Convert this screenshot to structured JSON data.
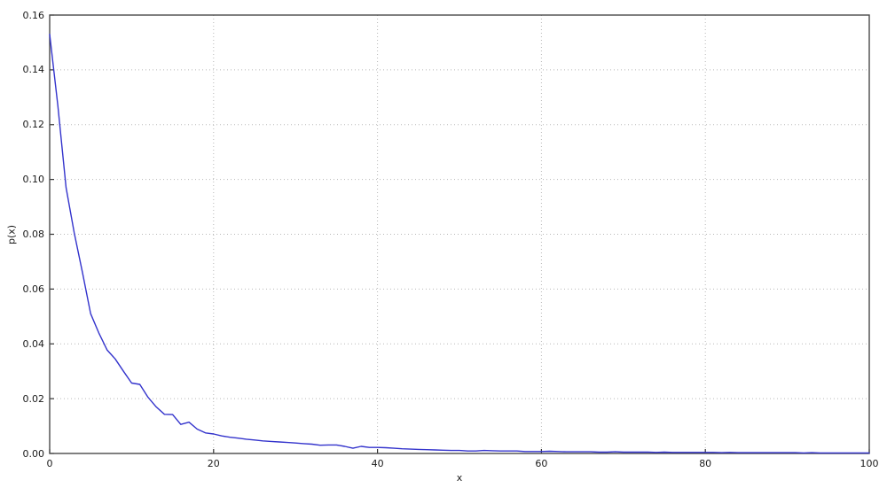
{
  "chart_data": {
    "type": "line",
    "title": "",
    "xlabel": "x",
    "ylabel": "p(x)",
    "xlim": [
      0,
      100
    ],
    "ylim": [
      0,
      0.16
    ],
    "x_ticks": [
      0,
      20,
      40,
      60,
      80,
      100
    ],
    "x_tick_labels": [
      "0",
      "20",
      "40",
      "60",
      "80",
      "100"
    ],
    "y_ticks": [
      0.0,
      0.02,
      0.04,
      0.06,
      0.08,
      0.1,
      0.12,
      0.14,
      0.16
    ],
    "y_tick_labels": [
      "0.00",
      "0.02",
      "0.04",
      "0.06",
      "0.08",
      "0.10",
      "0.12",
      "0.14",
      "0.16"
    ],
    "grid": true,
    "legend": "none",
    "line_color": "#3333cc",
    "grid_color": "#b8b8b8",
    "frame_color": "#4a4a4a",
    "tick_color": "#333333",
    "series": [
      {
        "name": "p(x)",
        "x": [
          0,
          1,
          2,
          3,
          4,
          5,
          6,
          7,
          8,
          9,
          10,
          11,
          12,
          13,
          14,
          15,
          16,
          17,
          18,
          19,
          20,
          21,
          22,
          23,
          24,
          25,
          26,
          27,
          28,
          29,
          30,
          31,
          32,
          33,
          34,
          35,
          36,
          37,
          38,
          39,
          40,
          41,
          42,
          43,
          44,
          45,
          46,
          47,
          48,
          49,
          50,
          51,
          52,
          53,
          54,
          55,
          56,
          57,
          58,
          59,
          60,
          61,
          62,
          63,
          64,
          65,
          66,
          67,
          68,
          69,
          70,
          71,
          72,
          73,
          74,
          75,
          76,
          77,
          78,
          79,
          80,
          81,
          82,
          83,
          84,
          85,
          86,
          87,
          88,
          89,
          90,
          91,
          92,
          93,
          94,
          95,
          96,
          97,
          98,
          99,
          100
        ],
        "y": [
          0.153,
          0.127,
          0.097,
          0.0805,
          0.066,
          0.051,
          0.044,
          0.0378,
          0.0345,
          0.03,
          0.0257,
          0.0252,
          0.0205,
          0.017,
          0.0143,
          0.0142,
          0.0106,
          0.0114,
          0.0089,
          0.0075,
          0.0071,
          0.0064,
          0.0059,
          0.0056,
          0.0052,
          0.0049,
          0.0046,
          0.0044,
          0.0042,
          0.004,
          0.0038,
          0.0036,
          0.0034,
          0.003,
          0.0031,
          0.0031,
          0.0026,
          0.0019,
          0.0026,
          0.0022,
          0.0022,
          0.0021,
          0.0019,
          0.0017,
          0.0016,
          0.0015,
          0.0014,
          0.0013,
          0.0012,
          0.0011,
          0.0011,
          0.0009,
          0.0009,
          0.0011,
          0.001,
          0.0009,
          0.0009,
          0.0009,
          0.0007,
          0.0007,
          0.0007,
          0.0008,
          0.0007,
          0.0006,
          0.0006,
          0.0006,
          0.0006,
          0.0005,
          0.0005,
          0.0006,
          0.0005,
          0.0005,
          0.0005,
          0.0005,
          0.0004,
          0.0005,
          0.0004,
          0.0004,
          0.0004,
          0.0004,
          0.0004,
          0.0004,
          0.0003,
          0.0004,
          0.0003,
          0.0003,
          0.0003,
          0.0003,
          0.0003,
          0.0003,
          0.0003,
          0.0003,
          0.0002,
          0.0003,
          0.0002,
          0.0002,
          0.0002,
          0.0002,
          0.0002,
          0.0002,
          0.0002
        ]
      }
    ]
  }
}
